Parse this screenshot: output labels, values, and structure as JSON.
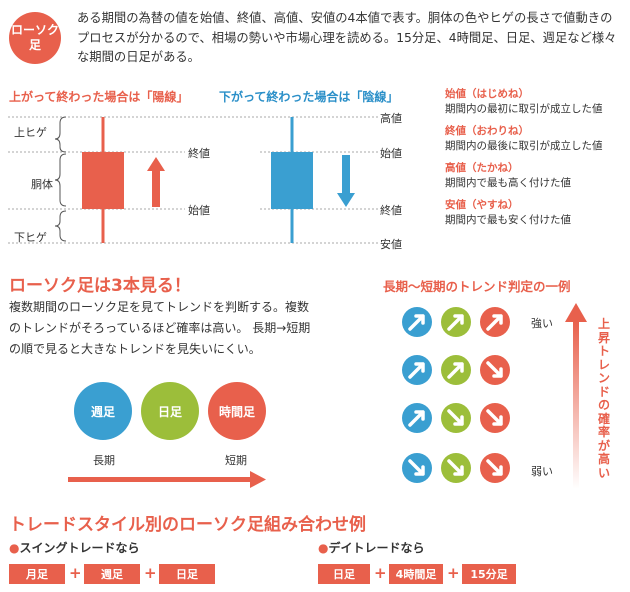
{
  "badge": {
    "line1": "ローソク",
    "line2": "足"
  },
  "intro": "ある期間の為替の値を始値、終値、高値、安値の4本値で表す。胴体の色やヒゲの長さで値動きのプロセスが分かるので、相場の勢いや市場心理を読める。15分足、4時間足、日足、週足など様々な期間の日足がある。",
  "candle": {
    "yang_heading": "上がって終わった場合は「陽線」",
    "yin_heading": "下がって終わった場合は「陰線」",
    "left_labels": {
      "upper": "上ヒゲ",
      "body": "胴体",
      "lower": "下ヒゲ"
    },
    "yang_labels": {
      "close": "終値",
      "open": "始値"
    },
    "yin_labels": {
      "open": "始値",
      "close": "終値"
    },
    "right_labels": {
      "high": "高値",
      "low": "安値"
    },
    "colors": {
      "yang": "#e8604c",
      "yin": "#3a9fd1"
    }
  },
  "definitions": [
    {
      "term": "始値（はじめね）",
      "desc": "期間内の最初に取引が成立した値"
    },
    {
      "term": "終値（おわりね）",
      "desc": "期間内の最後に取引が成立した値"
    },
    {
      "term": "高値（たかね）",
      "desc": "期間内で最も高く付けた値"
    },
    {
      "term": "安値（やすね）",
      "desc": "期間内で最も安く付けた値"
    }
  ],
  "three": {
    "heading": "ローソク足は3本見る！",
    "paragraph": [
      "複数期間のローソク足を見てトレンドを判断する。複数",
      "のトレンドがそろっているほど確率は高い。 長期→短期",
      "の順で見ると大きなトレンドを見失いにくい。"
    ],
    "circles": [
      {
        "label": "週足",
        "color": "#3a9fd1"
      },
      {
        "label": "日足",
        "color": "#9cbe3a"
      },
      {
        "label": "時間足",
        "color": "#e8604c"
      }
    ],
    "long_label": "長期",
    "short_label": "短期"
  },
  "trend": {
    "heading": "長期〜短期のトレンド判定の一例",
    "strong_label": "強い",
    "weak_label": "弱い",
    "vertical_text": "上昇トレンドの確率が高い",
    "rows": [
      [
        "up",
        "up",
        "up"
      ],
      [
        "up",
        "up",
        "down"
      ],
      [
        "up",
        "down",
        "down"
      ],
      [
        "down",
        "down",
        "down"
      ]
    ]
  },
  "styles": {
    "heading": "トレードスタイル別のローソク足組み合わせ例",
    "swing": {
      "label": "●スイングトレードなら",
      "chips": [
        "月足",
        "週足",
        "日足"
      ]
    },
    "day": {
      "label": "●デイトレードなら",
      "chips": [
        "日足",
        "4時間足",
        "15分足"
      ]
    },
    "plus": "+"
  }
}
